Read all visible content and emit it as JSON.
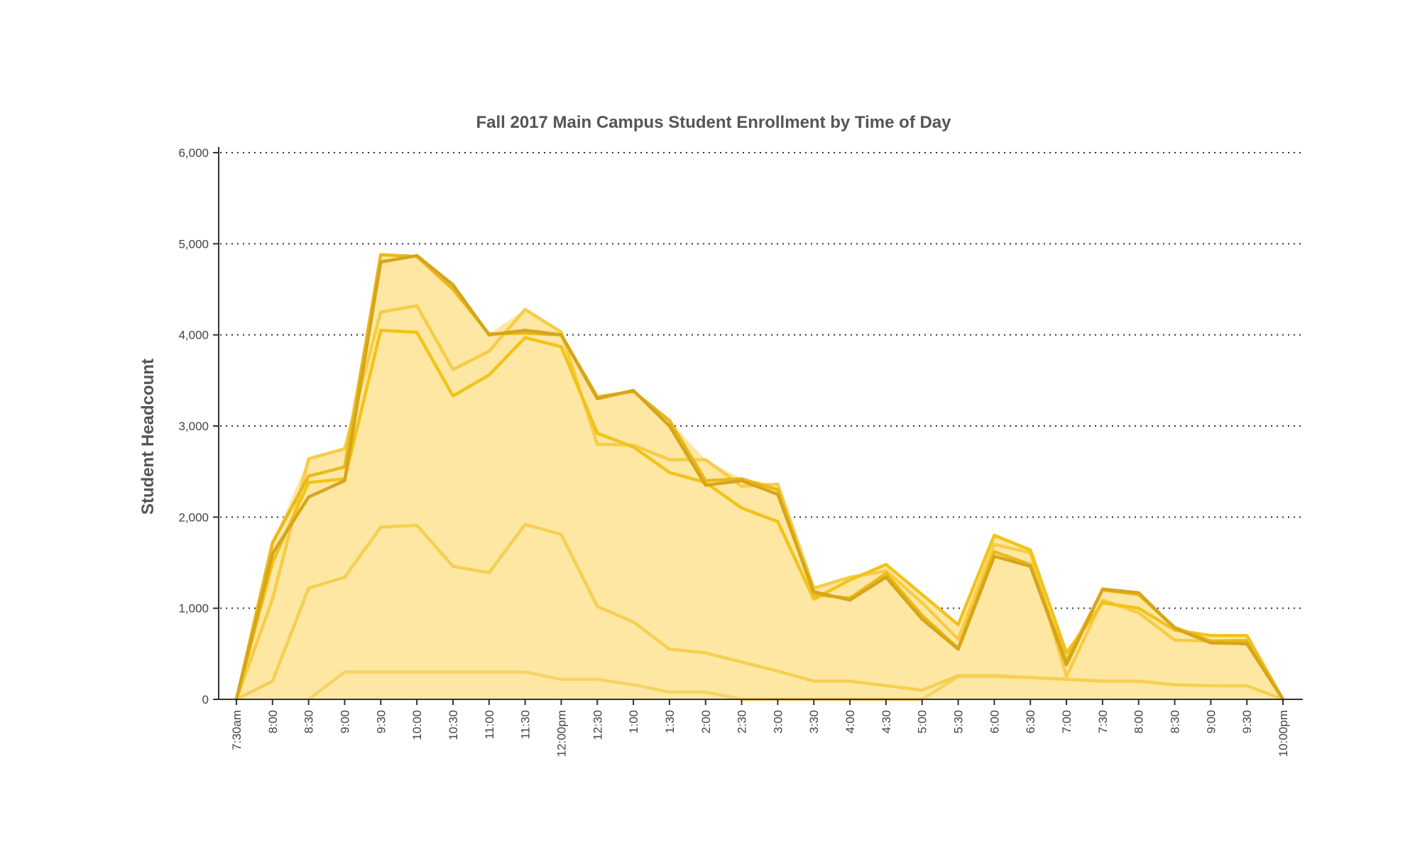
{
  "chart_data": {
    "type": "area",
    "title": "Fall 2017 Main Campus Student Enrollment by Time of Day",
    "xlabel": "",
    "ylabel": "Student Headcount",
    "ylim": [
      0,
      6000
    ],
    "yticks": [
      0,
      1000,
      2000,
      3000,
      4000,
      5000,
      6000
    ],
    "ytick_labels": [
      "0",
      "1,000",
      "2,000",
      "3,000",
      "4,000",
      "5,000",
      "6,000"
    ],
    "grid": "horizontal dotted",
    "legend": "none",
    "categories": [
      "7:30am",
      "8:00",
      "8:30",
      "9:00",
      "9:30",
      "10:00",
      "10:30",
      "11:00",
      "11:30",
      "12:00pm",
      "12:30",
      "1:00",
      "1:30",
      "2:00",
      "2:30",
      "3:00",
      "3:30",
      "4:00",
      "4:30",
      "5:00",
      "5:30",
      "6:00",
      "6:30",
      "7:00",
      "7:30",
      "8:00",
      "8:30",
      "9:00",
      "9:30",
      "10:00pm"
    ],
    "fill_color": "#fde7a3",
    "series": [
      {
        "color": "#d6a51a",
        "values": [
          0,
          1600,
          2220,
          2400,
          4800,
          4870,
          4550,
          4000,
          4050,
          4000,
          3300,
          3390,
          3000,
          2350,
          2400,
          2250,
          1180,
          1090,
          1340,
          880,
          550,
          1570,
          1460,
          380,
          1210,
          1170,
          780,
          620,
          610,
          0
        ]
      },
      {
        "color": "#ebb81a",
        "values": [
          0,
          1720,
          2450,
          2550,
          4880,
          4860,
          4500,
          4010,
          4020,
          4000,
          3320,
          3380,
          3060,
          2400,
          2420,
          2300,
          1150,
          1110,
          1380,
          920,
          560,
          1620,
          1480,
          420,
          1200,
          1150,
          790,
          640,
          640,
          0
        ]
      },
      {
        "color": "#f2c318",
        "values": [
          0,
          1500,
          2380,
          2420,
          4050,
          4030,
          3330,
          3560,
          3970,
          3870,
          2920,
          2770,
          2490,
          2380,
          2100,
          1950,
          1100,
          1310,
          1480,
          1150,
          820,
          1800,
          1640,
          510,
          1060,
          1000,
          760,
          700,
          700,
          0
        ]
      },
      {
        "color": "#f7cc45",
        "values": [
          0,
          1100,
          2640,
          2750,
          4250,
          4320,
          3620,
          3820,
          4280,
          4030,
          2800,
          2790,
          2630,
          2630,
          2340,
          2360,
          1220,
          1340,
          1410,
          1060,
          660,
          1700,
          1610,
          250,
          1090,
          950,
          650,
          640,
          650,
          0
        ]
      },
      {
        "color": "#f6cf52",
        "values": [
          0,
          200,
          1220,
          1340,
          1890,
          1910,
          1460,
          1390,
          1920,
          1810,
          1020,
          850,
          550,
          510,
          410,
          310,
          200,
          200,
          150,
          100,
          260,
          260,
          240,
          220,
          200,
          200,
          160,
          150,
          150,
          0
        ]
      },
      {
        "color": "#f6d366",
        "values": [
          null,
          null,
          0,
          300,
          300,
          300,
          300,
          300,
          300,
          220,
          220,
          160,
          80,
          80,
          0,
          0,
          0,
          0,
          0,
          0,
          250,
          250,
          240,
          220,
          200,
          200,
          160,
          150,
          150,
          0
        ]
      }
    ]
  }
}
